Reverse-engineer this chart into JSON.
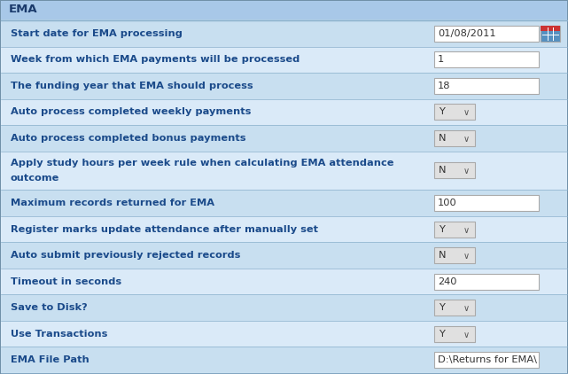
{
  "title": "EMA",
  "title_bg": "#a8c8e8",
  "title_text_color": "#1a3a6b",
  "row_bg_alt1": "#c8dff0",
  "row_bg_alt2": "#daeaf8",
  "border_color": "#8ab0cc",
  "input_bg": "#ffffff",
  "input_border": "#aaaaaa",
  "dropdown_bg": "#e0e0e0",
  "dropdown_border": "#aaaaaa",
  "label_color": "#1a4a8a",
  "label_fontsize": 8.2,
  "title_fontsize": 9.5,
  "rows": [
    {
      "label": "Start date for EMA processing",
      "value": "01/08/2011",
      "type": "date",
      "bg_idx": 0
    },
    {
      "label": "Week from which EMA payments will be processed",
      "value": "1",
      "type": "text",
      "bg_idx": 1
    },
    {
      "label": "The funding year that EMA should process",
      "value": "18",
      "type": "text",
      "bg_idx": 0
    },
    {
      "label": "Auto process completed weekly payments",
      "value": "Y",
      "type": "dropdown",
      "bg_idx": 1
    },
    {
      "label": "Auto process completed bonus payments",
      "value": "N",
      "type": "dropdown",
      "bg_idx": 0
    },
    {
      "label": "Apply study hours per week rule when calculating EMA attendance\noutcome",
      "value": "N",
      "type": "dropdown",
      "bg_idx": 1
    },
    {
      "label": "Maximum records returned for EMA",
      "value": "100",
      "type": "text",
      "bg_idx": 0
    },
    {
      "label": "Register marks update attendance after manually set",
      "value": "Y",
      "type": "dropdown",
      "bg_idx": 1
    },
    {
      "label": "Auto submit previously rejected records",
      "value": "N",
      "type": "dropdown",
      "bg_idx": 0
    },
    {
      "label": "Timeout in seconds",
      "value": "240",
      "type": "text",
      "bg_idx": 1
    },
    {
      "label": "Save to Disk?",
      "value": "Y",
      "type": "dropdown",
      "bg_idx": 0
    },
    {
      "label": "Use Transactions",
      "value": "Y",
      "type": "dropdown",
      "bg_idx": 1
    },
    {
      "label": "EMA File Path",
      "value": "D:\\Returns for EMA\\",
      "type": "text_partial",
      "bg_idx": 0
    }
  ],
  "calendar_color": "#5590c0",
  "calendar_red": "#cc3333",
  "outer_bg": "#b8d4e8",
  "fig_bg": "#b8d4e8"
}
